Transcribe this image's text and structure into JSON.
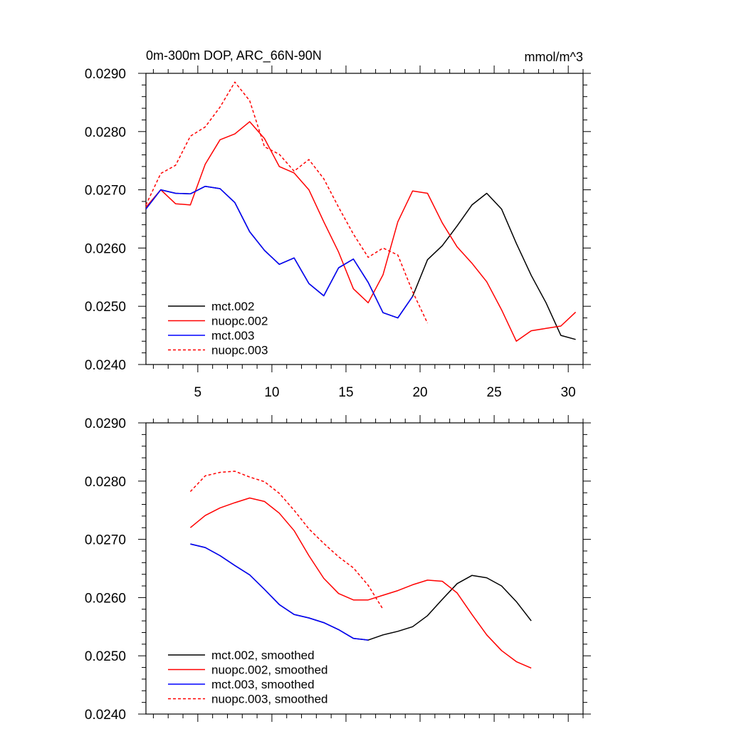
{
  "chart_data": [
    {
      "type": "line",
      "title": "0m-300m DOP, ARC_66N-90N",
      "units": "mmol/m^3",
      "xlim": [
        1.5,
        31
      ],
      "ylim": [
        0.024,
        0.029
      ],
      "xticks": [
        5,
        10,
        15,
        20,
        25,
        30
      ],
      "xtick_labels": [
        "5",
        "10",
        "15",
        "20",
        "25",
        "30"
      ],
      "yticks": [
        0.024,
        0.025,
        0.026,
        0.027,
        0.028,
        0.029
      ],
      "ytick_labels": [
        "0.0240",
        "0.0250",
        "0.0260",
        "0.0270",
        "0.0280",
        "0.0290"
      ],
      "legend_position": "bottom-left",
      "series": [
        {
          "name": "mct.002",
          "color": "#000000",
          "dash": "solid",
          "x": [
            1.5,
            2.5,
            3.5,
            4.5,
            5.5,
            6.5,
            7.5,
            8.5,
            9.5,
            10.5,
            11.5,
            12.5,
            13.5,
            14.5,
            15.5,
            16.5,
            17.5,
            18.5,
            19.5,
            20.5,
            21.5,
            22.5,
            23.5,
            24.5,
            25.5,
            26.5,
            27.5,
            28.5,
            29.5,
            30.5
          ],
          "y": [
            0.02667,
            0.027,
            0.02694,
            0.02693,
            0.02706,
            0.02702,
            0.02678,
            0.02628,
            0.02596,
            0.02572,
            0.02583,
            0.02539,
            0.02518,
            0.02566,
            0.02581,
            0.02541,
            0.02489,
            0.0248,
            0.02517,
            0.0258,
            0.02604,
            0.02638,
            0.02674,
            0.02694,
            0.02667,
            0.02608,
            0.02553,
            0.02506,
            0.0245,
            0.02443
          ]
        },
        {
          "name": "nuopc.002",
          "color": "#ff0000",
          "dash": "solid",
          "x": [
            1.5,
            2.5,
            3.5,
            4.5,
            5.5,
            6.5,
            7.5,
            8.5,
            9.5,
            10.5,
            11.5,
            12.5,
            13.5,
            14.5,
            15.5,
            16.5,
            17.5,
            18.5,
            19.5,
            20.5,
            21.5,
            22.5,
            23.5,
            24.5,
            25.5,
            26.5,
            27.5,
            28.5,
            29.5,
            30.5
          ],
          "y": [
            0.0267,
            0.027,
            0.02676,
            0.02674,
            0.02744,
            0.02786,
            0.02796,
            0.02817,
            0.02788,
            0.0274,
            0.02729,
            0.027,
            0.02645,
            0.02593,
            0.0253,
            0.02506,
            0.02554,
            0.02645,
            0.02698,
            0.02694,
            0.02643,
            0.02602,
            0.02574,
            0.02542,
            0.02494,
            0.0244,
            0.02458,
            0.02462,
            0.02466,
            0.0249
          ]
        },
        {
          "name": "mct.003",
          "color": "#0000ff",
          "dash": "solid",
          "x": [
            1.5,
            2.5,
            3.5,
            4.5,
            5.5,
            6.5,
            7.5,
            8.5,
            9.5,
            10.5,
            11.5,
            12.5,
            13.5,
            14.5,
            15.5,
            16.5,
            17.5,
            18.5,
            19.5
          ],
          "y": [
            0.02667,
            0.027,
            0.02694,
            0.02693,
            0.02706,
            0.02702,
            0.02678,
            0.02628,
            0.02596,
            0.02572,
            0.02583,
            0.02539,
            0.02518,
            0.02566,
            0.02581,
            0.02541,
            0.02489,
            0.0248,
            0.02517
          ]
        },
        {
          "name": "nuopc.003",
          "color": "#ff0000",
          "dash": "dashed",
          "x": [
            1.5,
            2.5,
            3.5,
            4.5,
            5.5,
            6.5,
            7.5,
            8.5,
            9.5,
            10.5,
            11.5,
            12.5,
            13.5,
            14.5,
            15.5,
            16.5,
            17.5,
            18.5,
            19.5,
            20.5
          ],
          "y": [
            0.02674,
            0.02728,
            0.02742,
            0.02792,
            0.02808,
            0.02842,
            0.02885,
            0.02853,
            0.02774,
            0.02761,
            0.02732,
            0.02752,
            0.02719,
            0.0267,
            0.02624,
            0.02584,
            0.026,
            0.02588,
            0.02525,
            0.02471
          ]
        }
      ]
    },
    {
      "type": "line",
      "xlim": [
        1.5,
        31
      ],
      "ylim": [
        0.024,
        0.029
      ],
      "xticks": [
        5,
        10,
        15,
        20,
        25,
        30
      ],
      "yticks": [
        0.024,
        0.025,
        0.026,
        0.027,
        0.028,
        0.029
      ],
      "ytick_labels": [
        "0.0240",
        "0.0250",
        "0.0260",
        "0.0270",
        "0.0280",
        "0.0290"
      ],
      "legend_position": "bottom-left",
      "series": [
        {
          "name": "mct.002, smoothed",
          "color": "#000000",
          "dash": "solid",
          "x": [
            4.5,
            5.5,
            6.5,
            7.5,
            8.5,
            9.5,
            10.5,
            11.5,
            12.5,
            13.5,
            14.5,
            15.5,
            16.5,
            17.5,
            18.5,
            19.5,
            20.5,
            21.5,
            22.5,
            23.5,
            24.5,
            25.5,
            26.5,
            27.5
          ],
          "y": [
            0.02692,
            0.02686,
            0.02672,
            0.02655,
            0.02639,
            0.02614,
            0.02588,
            0.02571,
            0.02565,
            0.02557,
            0.02545,
            0.0253,
            0.02527,
            0.02536,
            0.02542,
            0.0255,
            0.02569,
            0.02597,
            0.02624,
            0.02638,
            0.02634,
            0.0262,
            0.02593,
            0.0256
          ]
        },
        {
          "name": "nuopc.002, smoothed",
          "color": "#ff0000",
          "dash": "solid",
          "x": [
            4.5,
            5.5,
            6.5,
            7.5,
            8.5,
            9.5,
            10.5,
            11.5,
            12.5,
            13.5,
            14.5,
            15.5,
            16.5,
            17.5,
            18.5,
            19.5,
            20.5,
            21.5,
            22.5,
            23.5,
            24.5,
            25.5,
            26.5,
            27.5
          ],
          "y": [
            0.0272,
            0.02741,
            0.02754,
            0.02763,
            0.02771,
            0.02765,
            0.02745,
            0.02715,
            0.02672,
            0.02633,
            0.02607,
            0.02596,
            0.02596,
            0.02604,
            0.02612,
            0.02622,
            0.0263,
            0.02628,
            0.02608,
            0.02571,
            0.02536,
            0.02509,
            0.0249,
            0.02479
          ]
        },
        {
          "name": "mct.003, smoothed",
          "color": "#0000ff",
          "dash": "solid",
          "x": [
            4.5,
            5.5,
            6.5,
            7.5,
            8.5,
            9.5,
            10.5,
            11.5,
            12.5,
            13.5,
            14.5,
            15.5,
            16.5
          ],
          "y": [
            0.02692,
            0.02686,
            0.02672,
            0.02655,
            0.02639,
            0.02614,
            0.02588,
            0.02571,
            0.02565,
            0.02557,
            0.02545,
            0.0253,
            0.02527
          ]
        },
        {
          "name": "nuopc.003, smoothed",
          "color": "#ff0000",
          "dash": "dashed",
          "x": [
            4.5,
            5.5,
            6.5,
            7.5,
            8.5,
            9.5,
            10.5,
            11.5,
            12.5,
            13.5,
            14.5,
            15.5,
            16.5,
            17.5
          ],
          "y": [
            0.02782,
            0.02809,
            0.02815,
            0.02817,
            0.02807,
            0.02799,
            0.02779,
            0.0275,
            0.02718,
            0.02693,
            0.0267,
            0.02651,
            0.02621,
            0.0258
          ]
        }
      ]
    }
  ]
}
